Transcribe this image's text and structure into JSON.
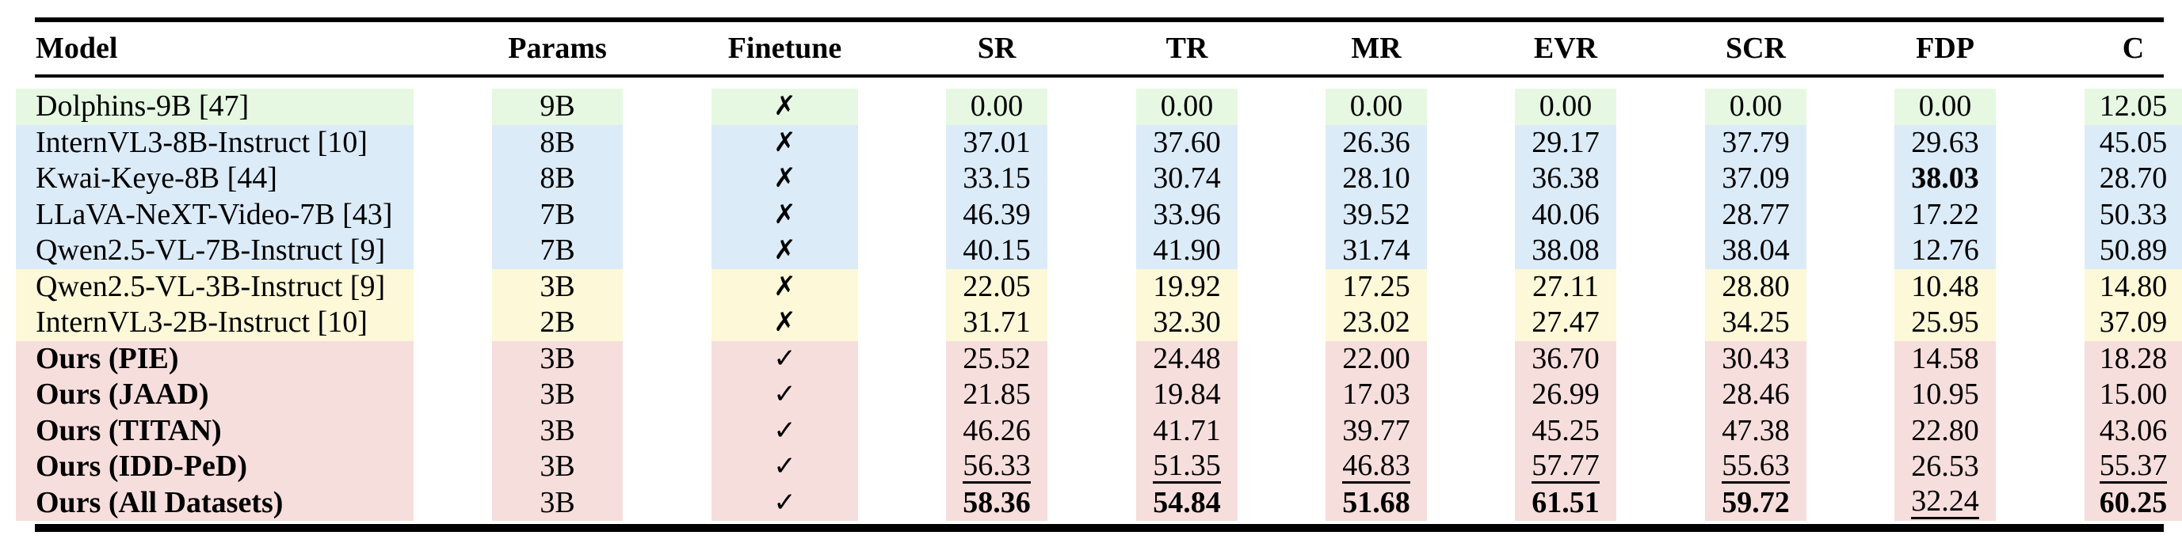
{
  "table": {
    "columns": [
      "Model",
      "Params",
      "Finetune",
      "SR",
      "TR",
      "MR",
      "EVR",
      "SCR",
      "FDP",
      "C"
    ],
    "marks": {
      "cross": "✗",
      "check": "✓"
    },
    "group_colors": {
      "green": "#e6f8e2",
      "blue": "#dcebf8",
      "yellow": "#fcf8d8",
      "pink": "#f6dedd"
    },
    "rows": [
      {
        "model": "Dolphins-9B [47]",
        "bold_model": false,
        "params": "9B",
        "finetune": "cross",
        "group": "green",
        "values": [
          {
            "t": "0.00"
          },
          {
            "t": "0.00"
          },
          {
            "t": "0.00"
          },
          {
            "t": "0.00"
          },
          {
            "t": "0.00"
          },
          {
            "t": "0.00"
          },
          {
            "t": "12.05"
          }
        ]
      },
      {
        "model": "InternVL3-8B-Instruct [10]",
        "bold_model": false,
        "params": "8B",
        "finetune": "cross",
        "group": "blue",
        "values": [
          {
            "t": "37.01"
          },
          {
            "t": "37.60"
          },
          {
            "t": "26.36"
          },
          {
            "t": "29.17"
          },
          {
            "t": "37.79"
          },
          {
            "t": "29.63"
          },
          {
            "t": "45.05"
          }
        ]
      },
      {
        "model": "Kwai-Keye-8B [44]",
        "bold_model": false,
        "params": "8B",
        "finetune": "cross",
        "group": "blue",
        "values": [
          {
            "t": "33.15"
          },
          {
            "t": "30.74"
          },
          {
            "t": "28.10"
          },
          {
            "t": "36.38"
          },
          {
            "t": "37.09"
          },
          {
            "t": "38.03",
            "s": "b"
          },
          {
            "t": "28.70"
          }
        ]
      },
      {
        "model": "LLaVA-NeXT-Video-7B [43]",
        "bold_model": false,
        "params": "7B",
        "finetune": "cross",
        "group": "blue",
        "values": [
          {
            "t": "46.39"
          },
          {
            "t": "33.96"
          },
          {
            "t": "39.52"
          },
          {
            "t": "40.06"
          },
          {
            "t": "28.77"
          },
          {
            "t": "17.22"
          },
          {
            "t": "50.33"
          }
        ]
      },
      {
        "model": "Qwen2.5-VL-7B-Instruct [9]",
        "bold_model": false,
        "params": "7B",
        "finetune": "cross",
        "group": "blue",
        "values": [
          {
            "t": "40.15"
          },
          {
            "t": "41.90"
          },
          {
            "t": "31.74"
          },
          {
            "t": "38.08"
          },
          {
            "t": "38.04"
          },
          {
            "t": "12.76"
          },
          {
            "t": "50.89"
          }
        ]
      },
      {
        "model": "Qwen2.5-VL-3B-Instruct [9]",
        "bold_model": false,
        "params": "3B",
        "finetune": "cross",
        "group": "yellow",
        "values": [
          {
            "t": "22.05"
          },
          {
            "t": "19.92"
          },
          {
            "t": "17.25"
          },
          {
            "t": "27.11"
          },
          {
            "t": "28.80"
          },
          {
            "t": "10.48"
          },
          {
            "t": "14.80"
          }
        ]
      },
      {
        "model": "InternVL3-2B-Instruct [10]",
        "bold_model": false,
        "params": "2B",
        "finetune": "cross",
        "group": "yellow",
        "values": [
          {
            "t": "31.71"
          },
          {
            "t": "32.30"
          },
          {
            "t": "23.02"
          },
          {
            "t": "27.47"
          },
          {
            "t": "34.25"
          },
          {
            "t": "25.95"
          },
          {
            "t": "37.09"
          }
        ]
      },
      {
        "model": "Ours (PIE)",
        "bold_model": true,
        "params": "3B",
        "finetune": "check",
        "group": "pink",
        "values": [
          {
            "t": "25.52"
          },
          {
            "t": "24.48"
          },
          {
            "t": "22.00"
          },
          {
            "t": "36.70"
          },
          {
            "t": "30.43"
          },
          {
            "t": "14.58"
          },
          {
            "t": "18.28"
          }
        ]
      },
      {
        "model": "Ours (JAAD)",
        "bold_model": true,
        "params": "3B",
        "finetune": "check",
        "group": "pink",
        "values": [
          {
            "t": "21.85"
          },
          {
            "t": "19.84"
          },
          {
            "t": "17.03"
          },
          {
            "t": "26.99"
          },
          {
            "t": "28.46"
          },
          {
            "t": "10.95"
          },
          {
            "t": "15.00"
          }
        ]
      },
      {
        "model": "Ours (TITAN)",
        "bold_model": true,
        "params": "3B",
        "finetune": "check",
        "group": "pink",
        "values": [
          {
            "t": "46.26"
          },
          {
            "t": "41.71"
          },
          {
            "t": "39.77"
          },
          {
            "t": "45.25"
          },
          {
            "t": "47.38"
          },
          {
            "t": "22.80"
          },
          {
            "t": "43.06"
          }
        ]
      },
      {
        "model": "Ours (IDD-PeD)",
        "bold_model": true,
        "params": "3B",
        "finetune": "check",
        "group": "pink",
        "values": [
          {
            "t": "56.33",
            "s": "u"
          },
          {
            "t": "51.35",
            "s": "u"
          },
          {
            "t": "46.83",
            "s": "u"
          },
          {
            "t": "57.77",
            "s": "u"
          },
          {
            "t": "55.63",
            "s": "u"
          },
          {
            "t": "26.53"
          },
          {
            "t": "55.37",
            "s": "u"
          }
        ]
      },
      {
        "model": "Ours (All Datasets)",
        "bold_model": true,
        "params": "3B",
        "finetune": "check",
        "group": "pink",
        "values": [
          {
            "t": "58.36",
            "s": "b"
          },
          {
            "t": "54.84",
            "s": "b"
          },
          {
            "t": "51.68",
            "s": "b"
          },
          {
            "t": "61.51",
            "s": "b"
          },
          {
            "t": "59.72",
            "s": "b"
          },
          {
            "t": "32.24",
            "s": "u"
          },
          {
            "t": "60.25",
            "s": "b"
          }
        ]
      }
    ]
  }
}
